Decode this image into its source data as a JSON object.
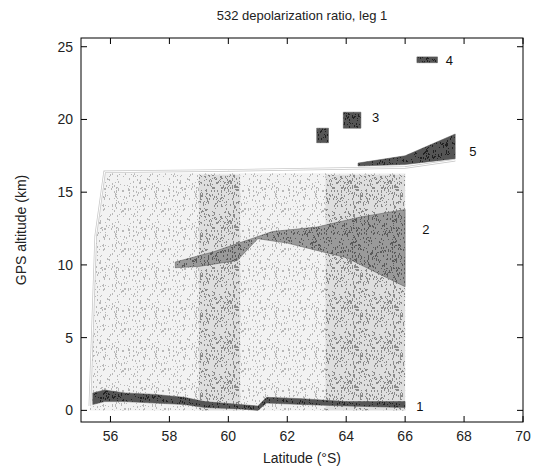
{
  "chart_data": {
    "type": "curtain",
    "title": "532 depolarization ratio, leg 1",
    "x_label": "Latitude (°S)",
    "y_label": "GPS altitude (km)",
    "xlim": [
      55,
      70
    ],
    "ylim": [
      -0.8,
      25.6
    ],
    "xticks": [
      56,
      58,
      60,
      62,
      64,
      66,
      68,
      70
    ],
    "yticks": [
      0,
      5,
      10,
      15,
      20,
      25
    ],
    "data_area": {
      "x": [
        55.3,
        55.5,
        55.8,
        66,
        66,
        55.3
      ],
      "values": [
        0,
        12,
        16.3,
        16.3,
        0,
        0
      ]
    },
    "bands": [
      {
        "x": [
          59,
          60.4
        ],
        "values": [
          0,
          16.2
        ]
      },
      {
        "x": [
          63.3,
          66
        ],
        "values": [
          0,
          16.2
        ]
      }
    ],
    "flight_altitude": {
      "x": [
        55.3,
        55.5,
        55.8,
        60,
        66,
        67.7
      ],
      "values": [
        0.3,
        12,
        16.4,
        16.5,
        16.7,
        17.2
      ]
    },
    "features": [
      {
        "label": "1",
        "label_x": 66.5,
        "label_y": 0.3,
        "x": [
          55.4,
          55.8,
          56.5,
          57.5,
          58.5,
          59.2,
          60.4,
          61.0,
          61.3,
          62.5,
          64,
          66,
          66,
          64,
          62.5,
          61.3,
          61.0,
          60.4,
          59.2,
          58.5,
          57.5,
          56.5,
          55.8,
          55.4
        ],
        "values": [
          1.2,
          1.4,
          1.2,
          1.1,
          0.9,
          0.6,
          0.4,
          0.3,
          0.9,
          0.8,
          0.6,
          0.6,
          0.2,
          0.3,
          0.4,
          0.5,
          0.0,
          0.1,
          0.2,
          0.4,
          0.5,
          0.6,
          0.6,
          0.4
        ]
      },
      {
        "label": "2",
        "label_x": 66.7,
        "label_y": 12.5,
        "x": [
          58.2,
          59.5,
          60.5,
          61.5,
          63,
          64.5,
          66,
          66,
          65,
          64,
          63,
          62,
          61,
          60.3,
          59,
          58.2
        ],
        "values": [
          10.2,
          10.9,
          11.6,
          12.3,
          12.6,
          13.3,
          13.8,
          8.5,
          9.5,
          10.5,
          11,
          11.5,
          11.8,
          10.3,
          9.9,
          9.8
        ]
      },
      {
        "label": "3",
        "label_x": 65.0,
        "label_y": 20.2,
        "x": [
          63.0,
          63.4,
          63.4,
          63.0,
          63.0,
          null,
          63.9,
          64.5,
          64.5,
          63.9,
          63.9
        ],
        "values": [
          18.4,
          18.4,
          19.4,
          19.4,
          18.4,
          null,
          19.4,
          19.4,
          20.5,
          20.5,
          19.4
        ]
      },
      {
        "label": "4",
        "label_x": 67.5,
        "label_y": 24.1,
        "x": [
          66.4,
          67.1,
          67.1,
          66.4,
          66.4
        ],
        "values": [
          23.9,
          23.9,
          24.3,
          24.3,
          23.9
        ]
      },
      {
        "label": "5",
        "label_x": 68.3,
        "label_y": 17.8,
        "x": [
          64.4,
          66,
          67.7,
          67.7,
          66,
          64.4
        ],
        "values": [
          17,
          17.5,
          19,
          17.3,
          16.9,
          16.8
        ]
      }
    ]
  }
}
